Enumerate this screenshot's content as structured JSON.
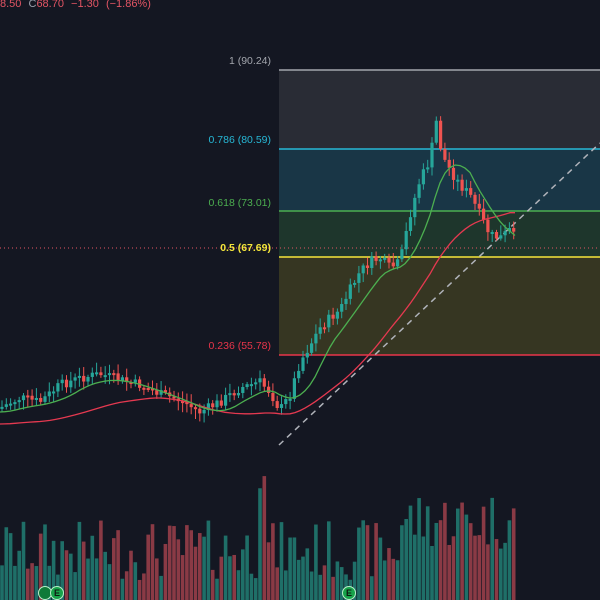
{
  "legend": {
    "low_fragment": "8.50",
    "close_prefix": "C",
    "close_value": "68.70",
    "change": "−1.30",
    "change_pct": "(−1.86%)"
  },
  "fib_levels": [
    {
      "ratio": "1",
      "price": "90.24",
      "label": "1 (90.24)",
      "color": "#a3a6ad"
    },
    {
      "ratio": "0.786",
      "price": "80.59",
      "label": "0.786 (80.59)",
      "color": "#27b8d6"
    },
    {
      "ratio": "0.618",
      "price": "73.01",
      "label": "0.618 (73.01)",
      "color": "#4caf50"
    },
    {
      "ratio": "0.5",
      "price": "67.69",
      "label": "0.5 (67.69)",
      "color": "#f5e63b"
    },
    {
      "ratio": "0.236",
      "price": "55.78",
      "label": "0.236 (55.78)",
      "color": "#e8354a"
    }
  ],
  "earnings_badges": [
    {
      "label": "E"
    },
    {
      "label": "E"
    }
  ],
  "colors": {
    "background": "#141722",
    "up": "#26a69a",
    "down": "#ef5350",
    "ma_fast": "#4caf50",
    "ma_slow": "#e53950",
    "trendline": "#b0b3ba"
  }
}
